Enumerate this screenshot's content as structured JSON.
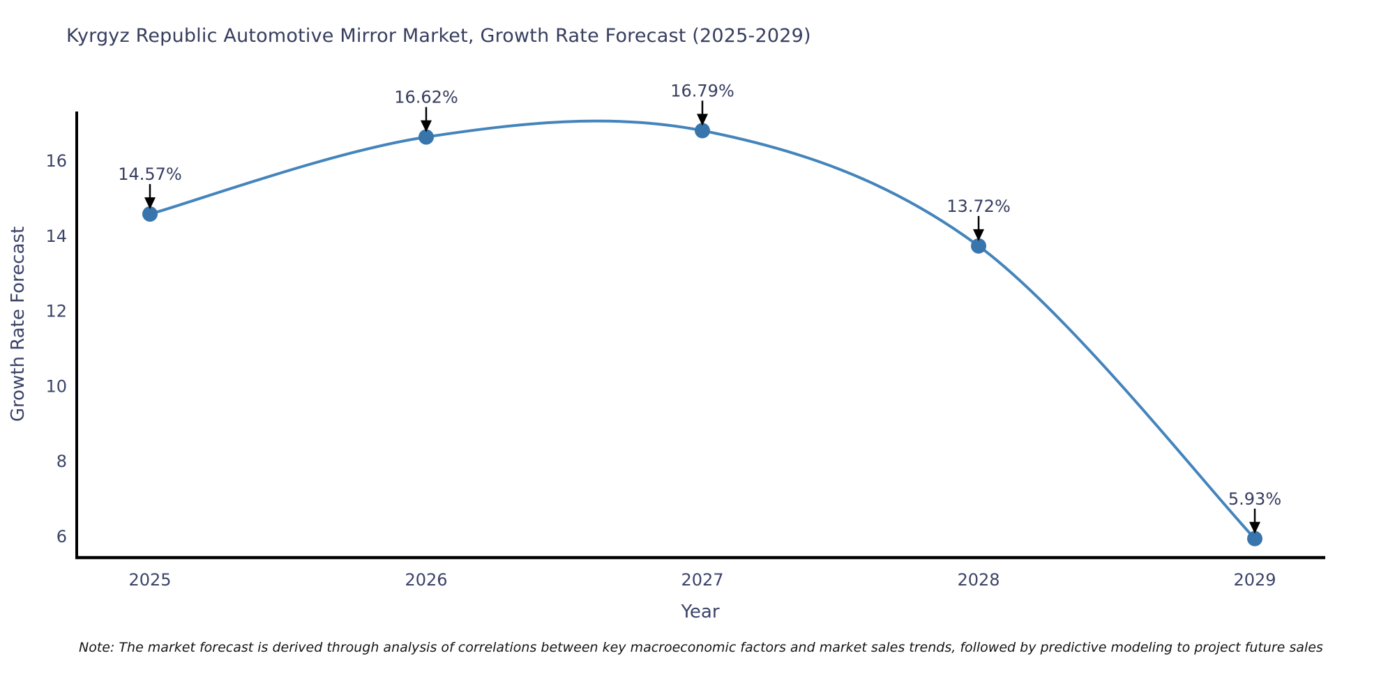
{
  "chart": {
    "title": "Kyrgyz Republic Automotive Mirror Market, Growth Rate Forecast (2025-2029)",
    "note": "Note: The market forecast is derived through analysis of correlations between key macroeconomic factors and market sales trends, followed by predictive modeling to project future sales",
    "xlabel": "Year",
    "ylabel": "Growth Rate Forecast"
  },
  "chart_data": {
    "type": "line",
    "title": "Kyrgyz Republic Automotive Mirror Market, Growth Rate Forecast (2025-2029)",
    "xlabel": "Year",
    "ylabel": "Growth Rate Forecast",
    "x": [
      2025,
      2026,
      2027,
      2028,
      2029
    ],
    "x_tick_labels": [
      "2025",
      "2026",
      "2027",
      "2028",
      "2029"
    ],
    "series": [
      {
        "name": "Growth Rate Forecast",
        "values": [
          14.57,
          16.62,
          16.79,
          13.72,
          5.93
        ]
      }
    ],
    "point_labels": [
      "14.57%",
      "16.62%",
      "16.79%",
      "13.72%",
      "5.93%"
    ],
    "y_ticks": [
      6,
      8,
      10,
      12,
      14,
      16
    ],
    "ylim": [
      5.4,
      17.3
    ],
    "grid": false,
    "legend_position": "none",
    "line_style": "smooth-spline",
    "marker": "circle",
    "annotations": "value labels with downward arrows above each point",
    "colors": {
      "line": "#4484bc",
      "marker": "#3875ad",
      "axis_spine": "#000000",
      "tick_text": "#3b4368",
      "axis_label_text": "#3b4368",
      "annotation_text": "#363d5e",
      "annotation_arrow": "#000000",
      "title_text": "#363d5e",
      "note_text": "#141414",
      "background": "#ffffff"
    }
  }
}
